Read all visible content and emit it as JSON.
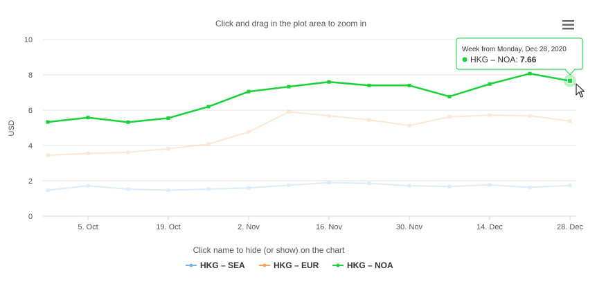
{
  "chart_data": {
    "type": "line",
    "subtitle": "Click and drag in the plot area to zoom in",
    "ylabel": "USD",
    "ylim": [
      0,
      10
    ],
    "yticks": [
      0,
      2,
      4,
      6,
      8,
      10
    ],
    "xlabels": [
      {
        "label": "5. Oct",
        "index": 1
      },
      {
        "label": "19. Oct",
        "index": 3
      },
      {
        "label": "2. Nov",
        "index": 5
      },
      {
        "label": "16. Nov",
        "index": 7
      },
      {
        "label": "30. Nov",
        "index": 9
      },
      {
        "label": "14. Dec",
        "index": 11
      },
      {
        "label": "28. Dec",
        "index": 13
      }
    ],
    "x": [
      "2020-09-28",
      "2020-10-05",
      "2020-10-12",
      "2020-10-19",
      "2020-10-26",
      "2020-11-02",
      "2020-11-09",
      "2020-11-16",
      "2020-11-23",
      "2020-11-30",
      "2020-12-07",
      "2020-12-14",
      "2020-12-21",
      "2020-12-28"
    ],
    "series": [
      {
        "name": "HKG – SEA",
        "color": "#7cb5ec",
        "faded": true,
        "values": [
          1.47,
          1.72,
          1.53,
          1.47,
          1.53,
          1.6,
          1.75,
          1.9,
          1.86,
          1.72,
          1.68,
          1.77,
          1.63,
          1.74
        ]
      },
      {
        "name": "HKG – EUR",
        "color": "#f7a35c",
        "faded": true,
        "values": [
          3.45,
          3.55,
          3.62,
          3.82,
          4.08,
          4.77,
          5.9,
          5.68,
          5.45,
          5.13,
          5.62,
          5.72,
          5.68,
          5.38
        ]
      },
      {
        "name": "HKG – NOA",
        "color": "#1bd13b",
        "faded": false,
        "values": [
          5.33,
          5.58,
          5.32,
          5.55,
          6.2,
          7.05,
          7.33,
          7.6,
          7.4,
          7.4,
          6.77,
          7.48,
          8.07,
          7.66
        ]
      }
    ],
    "legend_hint": "Click name to hide (or show) on the chart",
    "legend_placement": "bottom-center",
    "grid": true,
    "tooltip": {
      "header": "Week from Monday, Dec 28, 2020",
      "series": "HKG – NOA",
      "value": "7.66",
      "index": 13
    }
  },
  "menu_icon": "hamburger-menu-icon"
}
